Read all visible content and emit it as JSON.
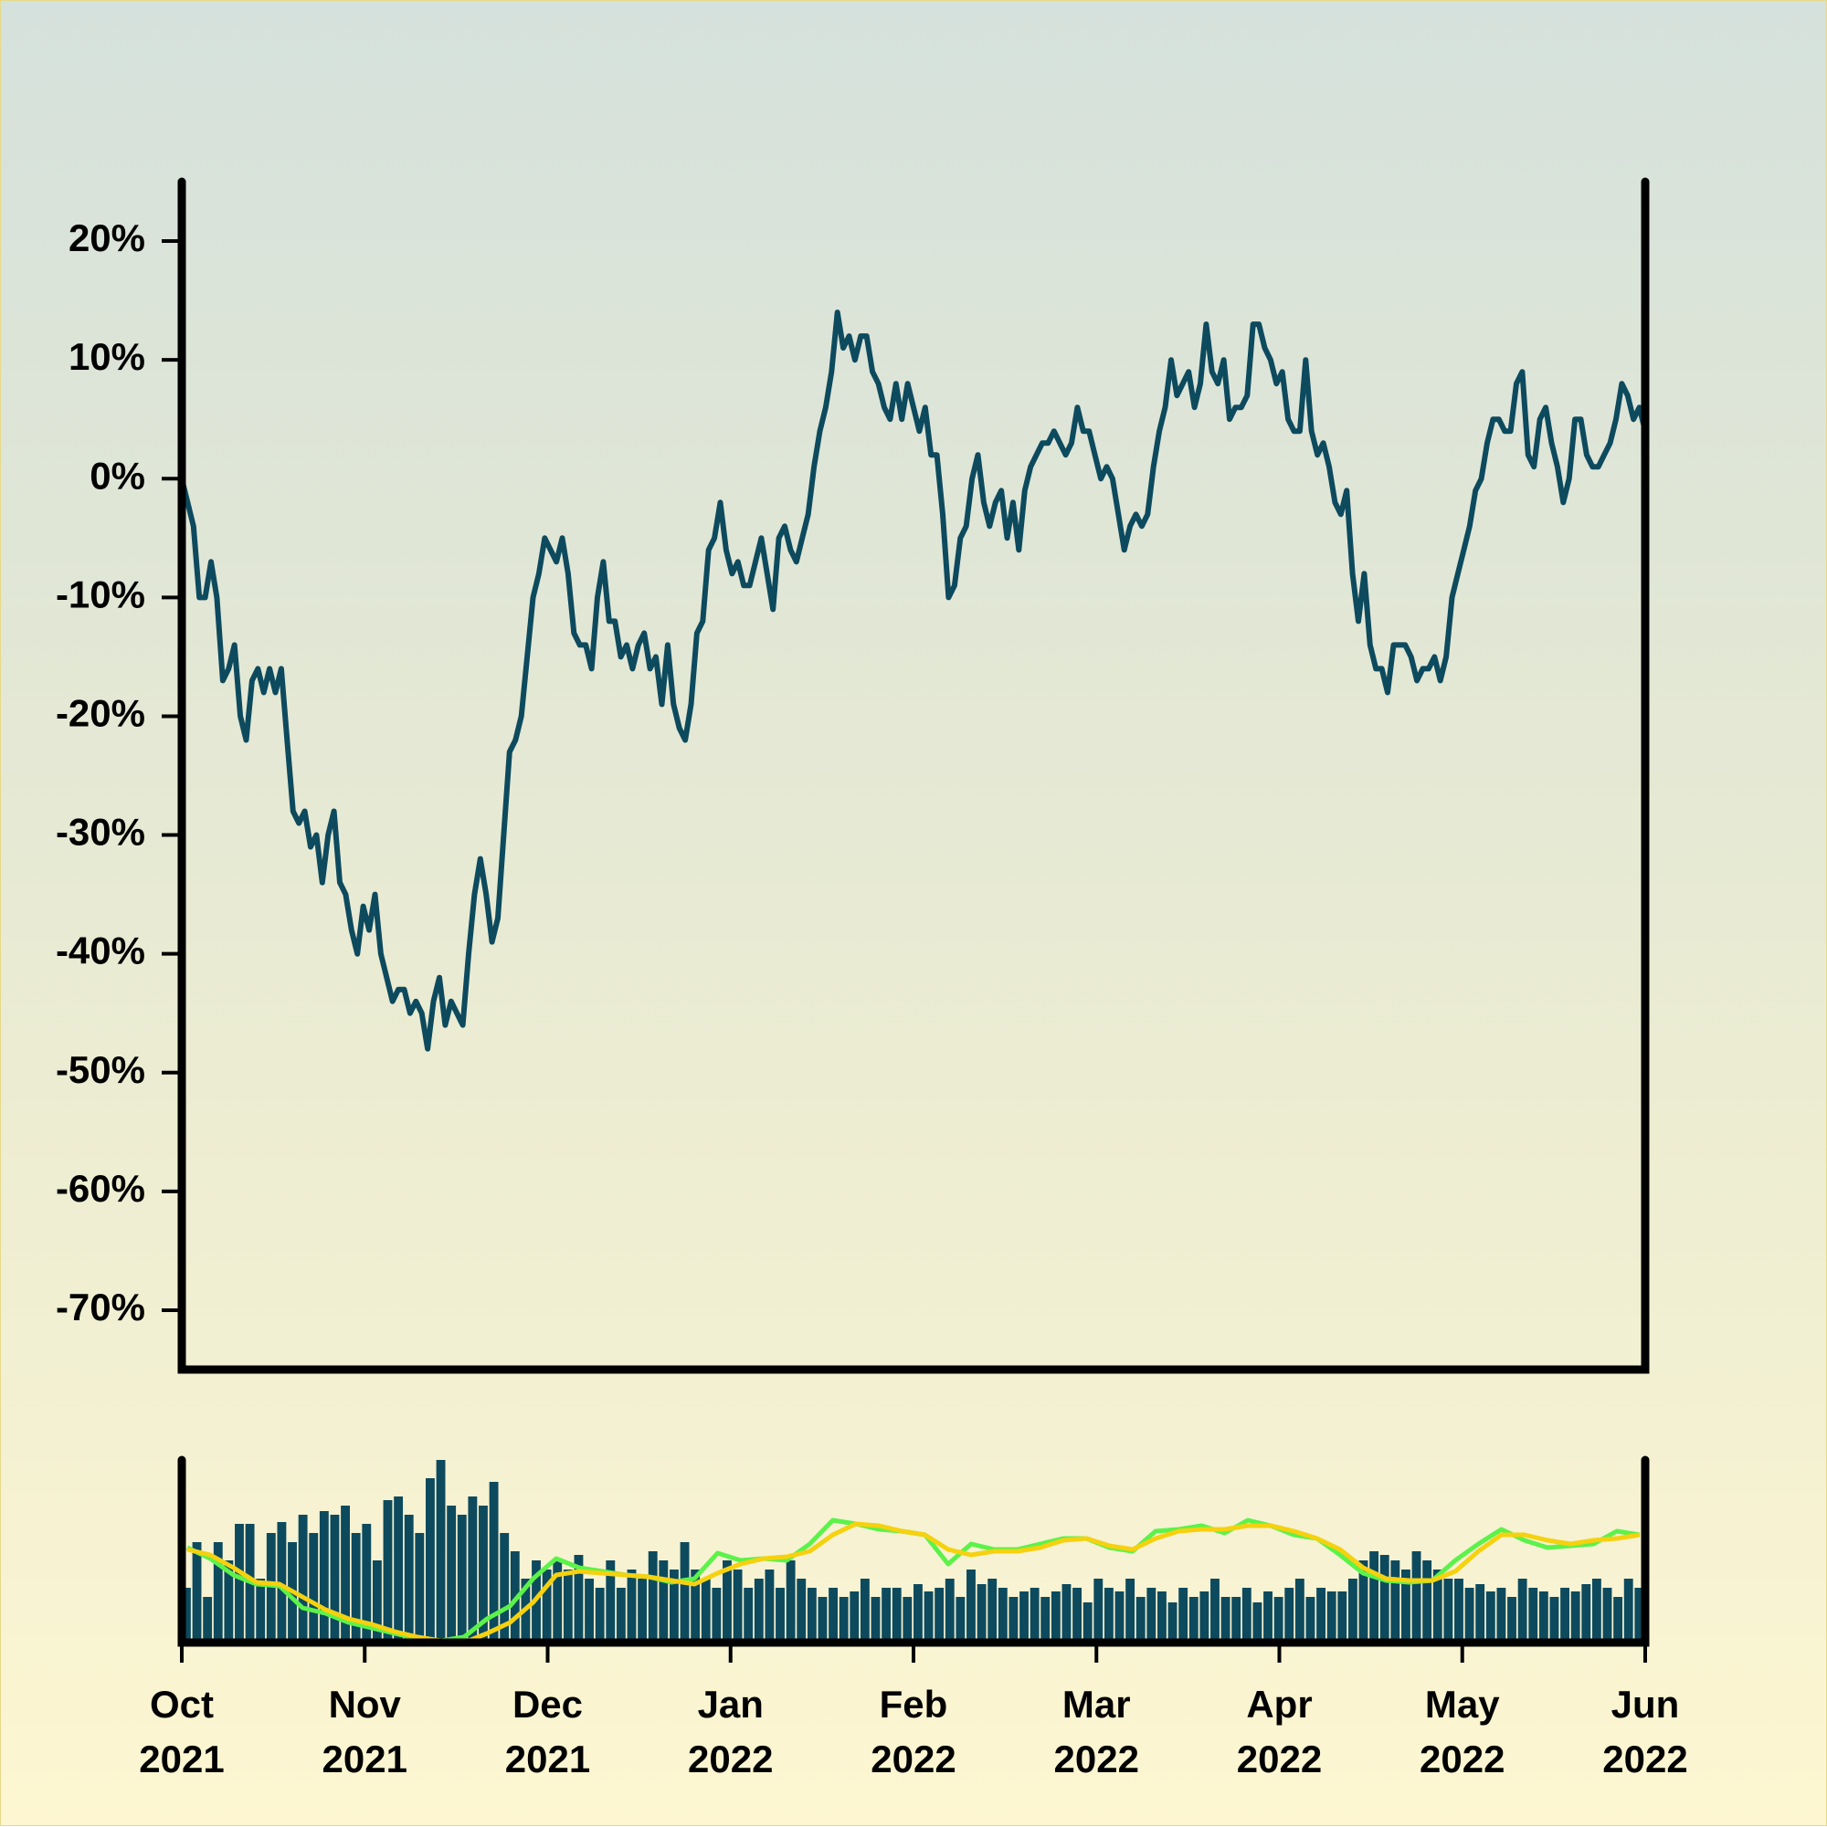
{
  "chart_data": [
    {
      "type": "line",
      "color": "#0d4a5e",
      "ylim": [
        -75,
        25
      ],
      "yticks": [
        {
          "value": -70,
          "label": "-70%"
        },
        {
          "value": -60,
          "label": "-60%"
        },
        {
          "value": -50,
          "label": "-50%"
        },
        {
          "value": -40,
          "label": "-40%"
        },
        {
          "value": -30,
          "label": "-30%"
        },
        {
          "value": -20,
          "label": "-20%"
        },
        {
          "value": -10,
          "label": "-10%"
        },
        {
          "value": 0,
          "label": "0%"
        },
        {
          "value": 10,
          "label": "10%"
        },
        {
          "value": 20,
          "label": "20%"
        }
      ],
      "values": [
        0,
        -2,
        -4,
        -10,
        -10,
        -7,
        -10,
        -17,
        -16,
        -14,
        -20,
        -22,
        -17,
        -16,
        -18,
        -16,
        -18,
        -16,
        -22,
        -28,
        -29,
        -28,
        -31,
        -30,
        -34,
        -30,
        -28,
        -34,
        -35,
        -38,
        -40,
        -36,
        -38,
        -35,
        -40,
        -42,
        -44,
        -43,
        -43,
        -45,
        -44,
        -45,
        -48,
        -44,
        -42,
        -46,
        -44,
        -45,
        -46,
        -40,
        -35,
        -32,
        -35,
        -39,
        -37,
        -30,
        -23,
        -22,
        -20,
        -15,
        -10,
        -8,
        -5,
        -6,
        -7,
        -5,
        -8,
        -13,
        -14,
        -14,
        -16,
        -10,
        -7,
        -12,
        -12,
        -15,
        -14,
        -16,
        -14,
        -13,
        -16,
        -15,
        -19,
        -14,
        -19,
        -21,
        -22,
        -19,
        -13,
        -12,
        -6,
        -5,
        -2,
        -6,
        -8,
        -7,
        -9,
        -9,
        -7,
        -5,
        -8,
        -11,
        -5,
        -4,
        -6,
        -7,
        -5,
        -3,
        1,
        4,
        6,
        9,
        14,
        11,
        12,
        10,
        12,
        12,
        9,
        8,
        6,
        5,
        8,
        5,
        8,
        6,
        4,
        6,
        2,
        2,
        -3,
        -10,
        -9,
        -5,
        -4,
        0,
        2,
        -2,
        -4,
        -2,
        -1,
        -5,
        -2,
        -6,
        -1,
        1,
        2,
        3,
        3,
        4,
        3,
        2,
        3,
        6,
        4,
        4,
        2,
        0,
        1,
        0,
        -3,
        -6,
        -4,
        -3,
        -4,
        -3,
        1,
        4,
        6,
        10,
        7,
        8,
        9,
        6,
        8,
        13,
        9,
        8,
        10,
        5,
        6,
        6,
        7,
        13,
        13,
        11,
        10,
        8,
        9,
        5,
        4,
        4,
        10,
        4,
        2,
        3,
        1,
        -2,
        -3,
        -1,
        -8,
        -12,
        -8,
        -14,
        -16,
        -16,
        -18,
        -14,
        -14,
        -14,
        -15,
        -17,
        -16,
        -16,
        -15,
        -17,
        -15,
        -10,
        -8,
        -6,
        -4,
        -1,
        0,
        3,
        5,
        5,
        4,
        4,
        8,
        9,
        2,
        1,
        5,
        6,
        3,
        1,
        -2,
        0,
        5,
        5,
        2,
        1,
        1,
        2,
        3,
        5,
        8,
        7,
        5,
        6,
        4
      ]
    },
    {
      "type": "bar",
      "color": "#0d4a5e",
      "values": [
        30,
        55,
        25,
        55,
        45,
        65,
        65,
        35,
        60,
        66,
        55,
        70,
        60,
        72,
        70,
        75,
        60,
        65,
        45,
        78,
        80,
        70,
        60,
        90,
        100,
        75,
        70,
        80,
        75,
        88,
        60,
        50,
        35,
        45,
        40,
        45,
        40,
        48,
        35,
        30,
        45,
        30,
        40,
        35,
        50,
        45,
        40,
        55,
        40,
        35,
        30,
        45,
        40,
        30,
        35,
        40,
        30,
        45,
        35,
        30,
        25,
        30,
        25,
        28,
        35,
        25,
        30,
        30,
        25,
        32,
        28,
        30,
        35,
        25,
        40,
        32,
        35,
        30,
        25,
        28,
        30,
        25,
        28,
        32,
        30,
        22,
        35,
        30,
        28,
        35,
        25,
        30,
        28,
        22,
        30,
        25,
        28,
        35,
        25,
        25,
        30,
        22,
        28,
        25,
        30,
        35,
        25,
        30,
        28,
        28,
        35,
        45,
        50,
        48,
        45,
        40,
        50,
        45,
        40,
        35,
        35,
        30,
        32,
        28,
        30,
        25,
        35,
        30,
        28,
        25,
        30,
        28,
        32,
        35,
        30,
        25,
        35,
        30
      ],
      "series": [
        {
          "color": "#5cf24a",
          "values": [
            52,
            46,
            37,
            32,
            31,
            19,
            16,
            11,
            8,
            5,
            2,
            1,
            3,
            13,
            20,
            35,
            46,
            41,
            39,
            37,
            36,
            33,
            35,
            49,
            45,
            46,
            45,
            54,
            67,
            65,
            62,
            61,
            59,
            43,
            54,
            51,
            51,
            54,
            57,
            57,
            52,
            50,
            61,
            62,
            64,
            60,
            67,
            64,
            59,
            57,
            48,
            38,
            34,
            33,
            34,
            45,
            54,
            62,
            56,
            52,
            53,
            54,
            61,
            59
          ]
        },
        {
          "color": "#f5d10f",
          "values": [
            51,
            48,
            41,
            33,
            32,
            25,
            18,
            13,
            10,
            6,
            3,
            1,
            0,
            5,
            11,
            22,
            37,
            39,
            38,
            37,
            36,
            34,
            32,
            38,
            43,
            46,
            47,
            50,
            59,
            65,
            64,
            61,
            59,
            51,
            48,
            50,
            50,
            52,
            56,
            57,
            53,
            51,
            57,
            61,
            62,
            62,
            64,
            64,
            61,
            57,
            51,
            41,
            35,
            34,
            34,
            39,
            50,
            59,
            59,
            56,
            54,
            56,
            57,
            59
          ]
        }
      ],
      "xticks": [
        "Oct\n2021",
        "Nov\n2021",
        "Dec\n2021",
        "Jan\n2022",
        "Feb\n2022",
        "Mar\n2022",
        "Apr\n2022",
        "May\n2022",
        "Jun\n2022"
      ]
    }
  ]
}
